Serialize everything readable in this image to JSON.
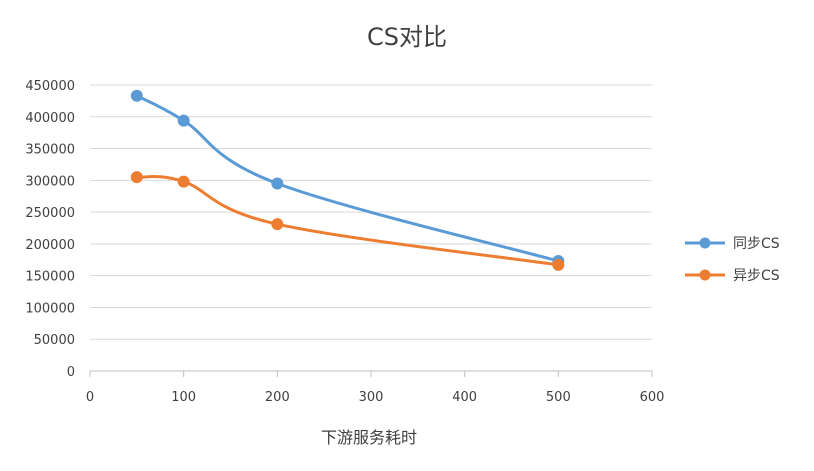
{
  "chart_data": {
    "type": "line",
    "title": "CS对比",
    "xlabel": "下游服务耗时",
    "ylabel": "",
    "xlim": [
      0,
      600
    ],
    "ylim": [
      0,
      450000
    ],
    "x_ticks": [
      0,
      100,
      200,
      300,
      400,
      500,
      600
    ],
    "y_ticks": [
      0,
      50000,
      100000,
      150000,
      200000,
      250000,
      300000,
      350000,
      400000,
      450000
    ],
    "grid": "horizontal",
    "legend": "right",
    "series": [
      {
        "name": "同步CS",
        "color": "#5b9bd5",
        "x": [
          50,
          100,
          200,
          500
        ],
        "y": [
          433000,
          394000,
          295000,
          173000
        ]
      },
      {
        "name": "异步CS",
        "color": "#ed7d31",
        "x": [
          50,
          100,
          200,
          500
        ],
        "y": [
          305000,
          298000,
          231000,
          167000
        ]
      }
    ]
  }
}
